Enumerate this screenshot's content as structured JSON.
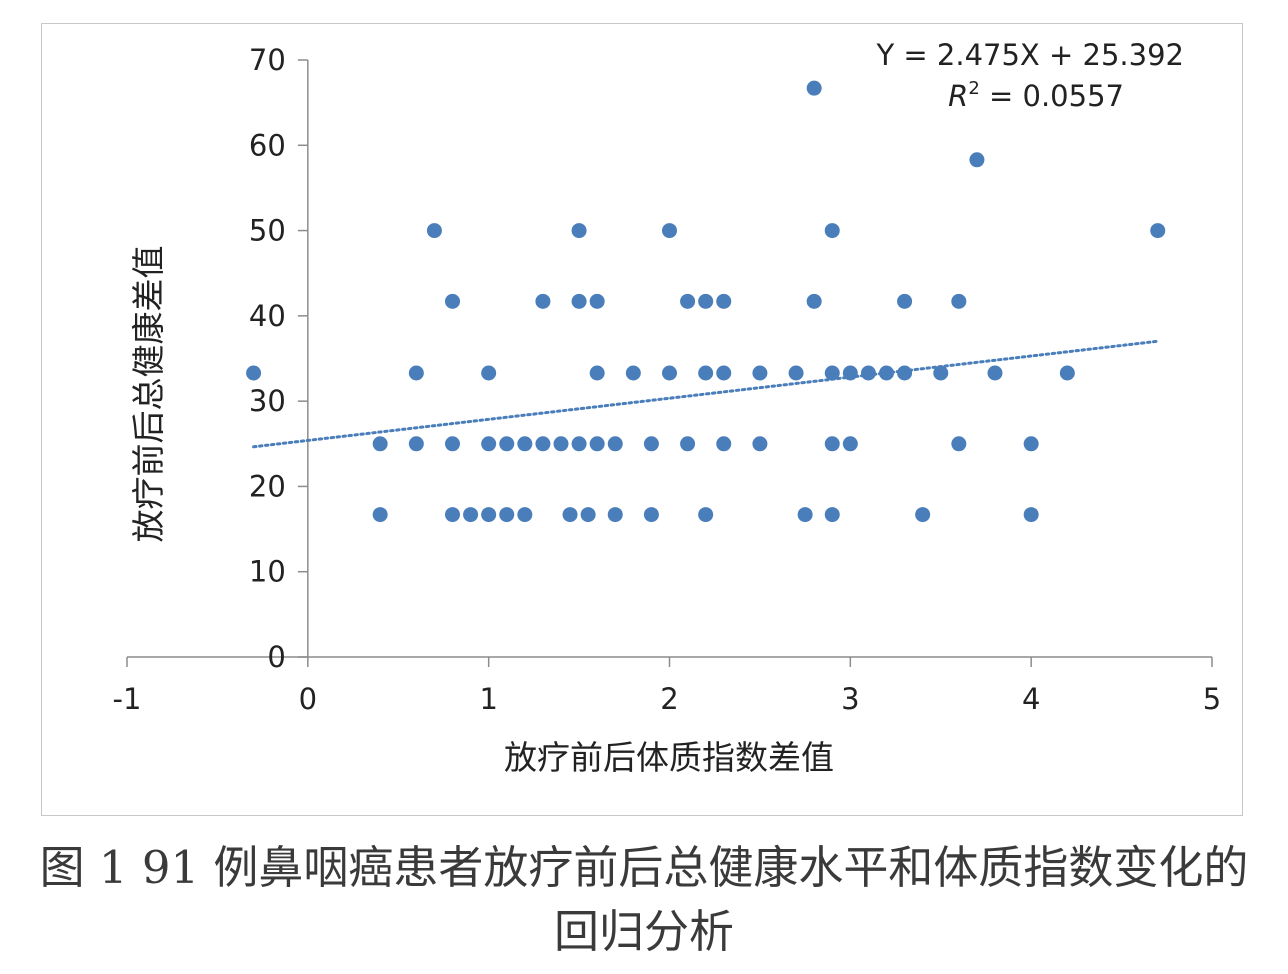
{
  "chart_data": {
    "type": "scatter",
    "xlabel": "放疗前后体质指数差值",
    "ylabel": "放疗前后总健康差值",
    "xlim": [
      -1,
      5
    ],
    "ylim": [
      0,
      70
    ],
    "x_ticks": [
      -1,
      0,
      1,
      2,
      3,
      4,
      5
    ],
    "y_ticks": [
      0,
      10,
      20,
      30,
      40,
      50,
      60,
      70
    ],
    "grid": false,
    "marker_color": "#4a7ebb",
    "trendline_color": "#4a7ebb",
    "trendline": {
      "style": "dotted",
      "slope": 2.475,
      "intercept": 25.392,
      "x_range": [
        -0.3,
        4.7
      ],
      "equation_text": "Y = 2.475X + 25.392",
      "r2_label": "R",
      "r2_exponent": "2",
      "r2_value_text": " = 0.0557"
    },
    "points": [
      [
        -0.3,
        33.3
      ],
      [
        0.4,
        25
      ],
      [
        0.4,
        16.7
      ],
      [
        0.6,
        33.3
      ],
      [
        0.6,
        25
      ],
      [
        0.7,
        50
      ],
      [
        0.8,
        41.7
      ],
      [
        0.8,
        25
      ],
      [
        0.8,
        16.7
      ],
      [
        0.9,
        16.7
      ],
      [
        1.0,
        33.3
      ],
      [
        1.0,
        25
      ],
      [
        1.0,
        16.7
      ],
      [
        1.1,
        25
      ],
      [
        1.1,
        16.7
      ],
      [
        1.2,
        25
      ],
      [
        1.2,
        16.7
      ],
      [
        1.3,
        41.7
      ],
      [
        1.3,
        25
      ],
      [
        1.4,
        25
      ],
      [
        1.45,
        16.7
      ],
      [
        1.5,
        50
      ],
      [
        1.5,
        41.7
      ],
      [
        1.5,
        25
      ],
      [
        1.55,
        16.7
      ],
      [
        1.6,
        41.7
      ],
      [
        1.6,
        33.3
      ],
      [
        1.6,
        25
      ],
      [
        1.7,
        25
      ],
      [
        1.7,
        16.7
      ],
      [
        1.8,
        33.3
      ],
      [
        1.9,
        25
      ],
      [
        1.9,
        16.7
      ],
      [
        2.0,
        50
      ],
      [
        2.0,
        33.3
      ],
      [
        2.1,
        41.7
      ],
      [
        2.1,
        25
      ],
      [
        2.2,
        41.7
      ],
      [
        2.2,
        33.3
      ],
      [
        2.2,
        16.7
      ],
      [
        2.3,
        41.7
      ],
      [
        2.3,
        33.3
      ],
      [
        2.3,
        25
      ],
      [
        2.5,
        33.3
      ],
      [
        2.5,
        25
      ],
      [
        2.7,
        33.3
      ],
      [
        2.75,
        16.7
      ],
      [
        2.8,
        66.7
      ],
      [
        2.8,
        41.7
      ],
      [
        2.9,
        50
      ],
      [
        2.9,
        33.3
      ],
      [
        2.9,
        25
      ],
      [
        2.9,
        16.7
      ],
      [
        3.0,
        33.3
      ],
      [
        3.0,
        25
      ],
      [
        3.1,
        33.3
      ],
      [
        3.2,
        33.3
      ],
      [
        3.3,
        41.7
      ],
      [
        3.3,
        33.3
      ],
      [
        3.4,
        16.7
      ],
      [
        3.5,
        33.3
      ],
      [
        3.6,
        41.7
      ],
      [
        3.6,
        25
      ],
      [
        3.7,
        58.3
      ],
      [
        3.8,
        33.3
      ],
      [
        4.0,
        25
      ],
      [
        4.0,
        16.7
      ],
      [
        4.2,
        33.3
      ],
      [
        4.7,
        50
      ]
    ]
  },
  "caption": {
    "line1": "图 1   91 例鼻咽癌患者放疗前后总健康水平和体质指数变化的",
    "line2": "回归分析"
  }
}
